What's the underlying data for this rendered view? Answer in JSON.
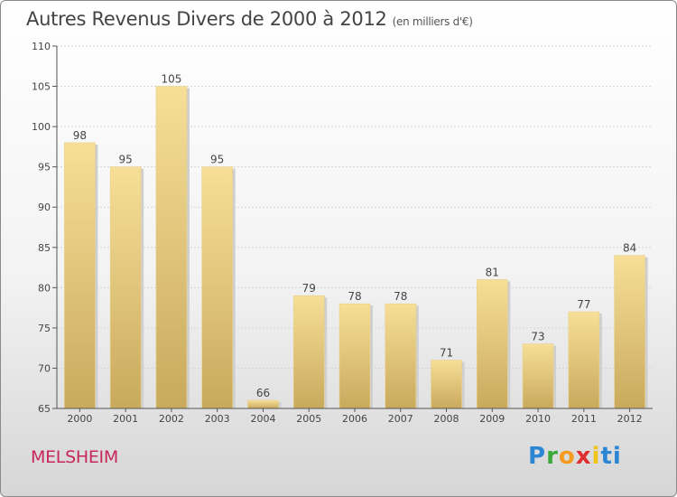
{
  "title": "Autres Revenus Divers de 2000 à 2012",
  "unit_note": "(en milliers d'€)",
  "city": "MELSHEIM",
  "logo": {
    "text": "Proxiti",
    "colors": [
      "#2b86d4",
      "#3aa93a",
      "#f39b1f",
      "#e02f2f",
      "#f0c419",
      "#2b86d4"
    ]
  },
  "colors": {
    "bar_light": "#f7df98",
    "bar_dark": "#c9aa5d",
    "title": "#444444",
    "city": "#c8275a"
  },
  "chart_data": {
    "type": "bar",
    "categories": [
      "2000",
      "2001",
      "2002",
      "2003",
      "2004",
      "2005",
      "2006",
      "2007",
      "2008",
      "2009",
      "2010",
      "2011",
      "2012"
    ],
    "values": [
      98,
      95,
      105,
      95,
      66,
      79,
      78,
      78,
      71,
      81,
      73,
      77,
      84
    ],
    "ylim": [
      65,
      110
    ],
    "yticks": [
      65,
      70,
      75,
      80,
      85,
      90,
      95,
      100,
      105,
      110
    ],
    "grid": true,
    "title": "Autres Revenus Divers de 2000 à 2012",
    "xlabel": "",
    "ylabel": ""
  }
}
